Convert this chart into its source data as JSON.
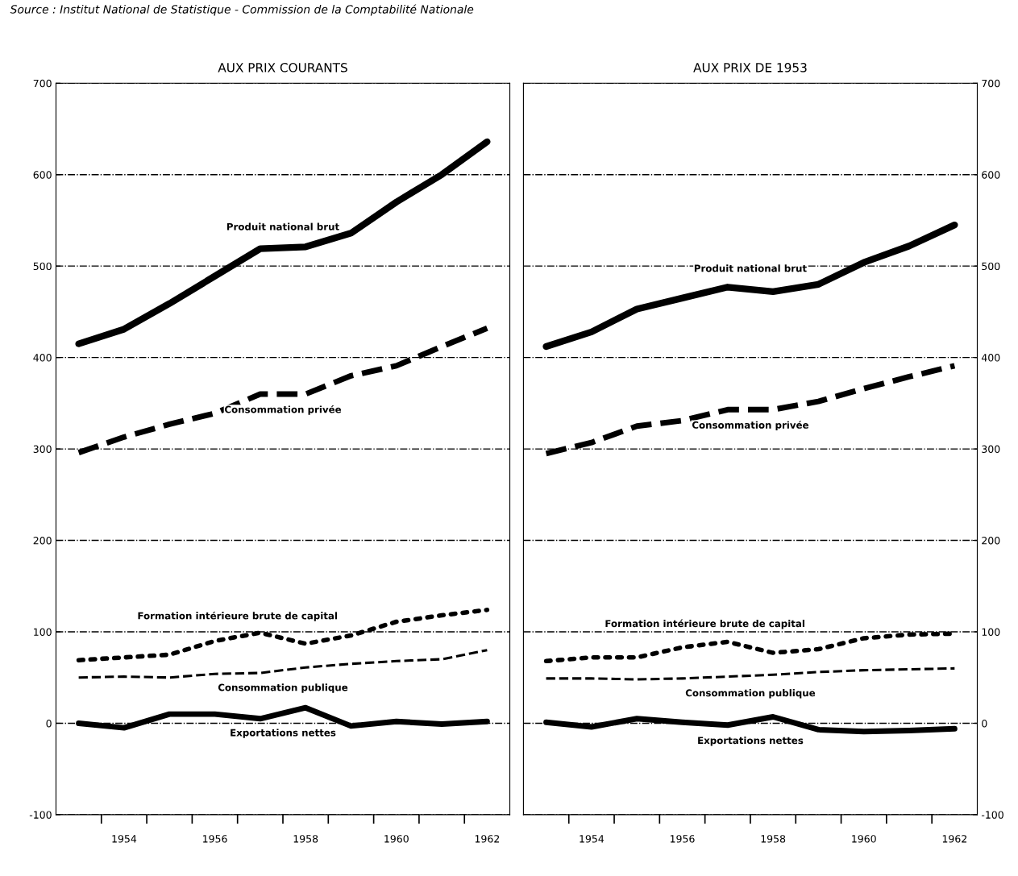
{
  "chart_data": [
    {
      "type": "line",
      "title": "AUX PRIX COURANTS",
      "annotations": [
        "Source : Institut National de Statistique - Commission de la Comptabilité Nationale"
      ],
      "x": [
        1953,
        1954,
        1955,
        1956,
        1957,
        1958,
        1959,
        1960,
        1961,
        1962
      ],
      "series": [
        {
          "name": "Produit national brut",
          "color": "#000000",
          "line_style": "solid",
          "values": [
            415,
            431,
            459,
            489,
            519,
            521,
            536,
            570,
            600,
            636
          ]
        },
        {
          "name": "Consommation privée",
          "color": "#000000",
          "line_style": "dashed",
          "values": [
            296,
            313,
            327,
            339,
            360,
            360,
            380,
            391,
            412,
            432
          ]
        },
        {
          "name": "Formation intérieure brute de capital",
          "color": "#000000",
          "line_style": "dotted",
          "values": [
            69,
            72,
            75,
            90,
            99,
            87,
            96,
            111,
            118,
            124
          ]
        },
        {
          "name": "Consommation publique",
          "color": "#000000",
          "line_style": "dashed",
          "values": [
            50,
            51,
            50,
            54,
            55,
            61,
            65,
            68,
            70,
            80
          ]
        },
        {
          "name": "Exportations nettes",
          "color": "#000000",
          "line_style": "solid",
          "values": [
            0,
            -5,
            10,
            10,
            5,
            17,
            -3,
            2,
            -1,
            2
          ]
        }
      ],
      "xlim": [
        1952.5,
        1962.5
      ],
      "xticks": [
        {
          "value": 1953.5,
          "label": null
        },
        {
          "value": 1954,
          "label": "1954"
        },
        {
          "value": 1954.5,
          "label": null
        },
        {
          "value": 1955.5,
          "label": null
        },
        {
          "value": 1956,
          "label": "1956"
        },
        {
          "value": 1956.5,
          "label": null
        },
        {
          "value": 1957.5,
          "label": null
        },
        {
          "value": 1958,
          "label": "1958"
        },
        {
          "value": 1958.5,
          "label": null
        },
        {
          "value": 1959.5,
          "label": null
        },
        {
          "value": 1960,
          "label": "1960"
        },
        {
          "value": 1960.5,
          "label": null
        },
        {
          "value": 1961.5,
          "label": null
        },
        {
          "value": 1962,
          "label": "1962"
        }
      ],
      "ylim": [
        -100,
        700
      ],
      "yticks": [
        -100,
        0,
        100,
        200,
        300,
        400,
        500,
        600,
        700
      ],
      "grid": "y"
    },
    {
      "type": "line",
      "title": "AUX PRIX DE 1953",
      "x": [
        1953,
        1954,
        1955,
        1956,
        1957,
        1958,
        1959,
        1960,
        1961,
        1962
      ],
      "series": [
        {
          "name": "Produit national brut",
          "color": "#000000",
          "line_style": "solid",
          "values": [
            412,
            428,
            453,
            465,
            477,
            472,
            480,
            504,
            522,
            545
          ]
        },
        {
          "name": "Consommation privée",
          "color": "#000000",
          "line_style": "dashed",
          "values": [
            295,
            307,
            325,
            331,
            343,
            343,
            352,
            366,
            379,
            391
          ]
        },
        {
          "name": "Formation intérieure brute de capital",
          "color": "#000000",
          "line_style": "dotted",
          "values": [
            68,
            72,
            72,
            83,
            89,
            77,
            81,
            93,
            97,
            98
          ]
        },
        {
          "name": "Consommation publique",
          "color": "#000000",
          "line_style": "dashed",
          "values": [
            49,
            49,
            48,
            49,
            51,
            53,
            56,
            58,
            59,
            60
          ]
        },
        {
          "name": "Exportations nettes",
          "color": "#000000",
          "line_style": "solid",
          "values": [
            1,
            -4,
            5,
            1,
            -2,
            7,
            -7,
            -9,
            -8,
            -6
          ]
        }
      ],
      "xlim": [
        1952.5,
        1962.5
      ],
      "xticks": [
        {
          "value": 1953.5,
          "label": null
        },
        {
          "value": 1954,
          "label": "1954"
        },
        {
          "value": 1954.5,
          "label": null
        },
        {
          "value": 1955.5,
          "label": null
        },
        {
          "value": 1956,
          "label": "1956"
        },
        {
          "value": 1956.5,
          "label": null
        },
        {
          "value": 1957.5,
          "label": null
        },
        {
          "value": 1958,
          "label": "1958"
        },
        {
          "value": 1958.5,
          "label": null
        },
        {
          "value": 1959.5,
          "label": null
        },
        {
          "value": 1960,
          "label": "1960"
        },
        {
          "value": 1960.5,
          "label": null
        },
        {
          "value": 1961.5,
          "label": null
        },
        {
          "value": 1962,
          "label": "1962"
        }
      ],
      "ylim": [
        -100,
        700
      ],
      "yticks": [
        -100,
        0,
        100,
        200,
        300,
        400,
        500,
        600,
        700
      ],
      "grid": "y"
    }
  ]
}
